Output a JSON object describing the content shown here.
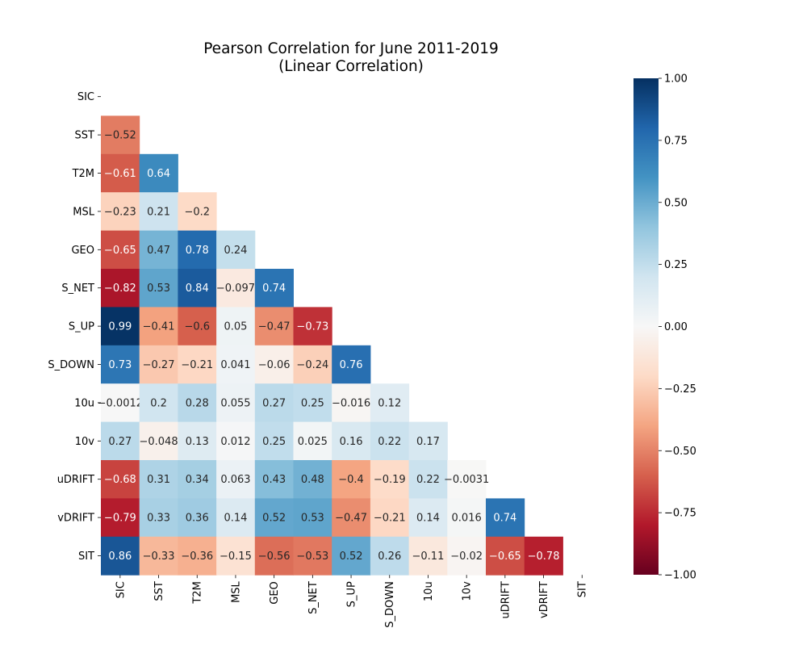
{
  "chart_data": {
    "type": "heatmap",
    "title": "Pearson Correlation for June 2011-2019",
    "subtitle": "(Linear Correlation)",
    "variables": [
      "SIC",
      "SST",
      "T2M",
      "MSL",
      "GEO",
      "S_NET",
      "S_UP",
      "S_DOWN",
      "10u",
      "10v",
      "uDRIFT",
      "vDRIFT",
      "SIT"
    ],
    "mask": "upper-triangle-and-diagonal",
    "matrix": [
      [
        null,
        null,
        null,
        null,
        null,
        null,
        null,
        null,
        null,
        null,
        null,
        null,
        null
      ],
      [
        -0.52,
        null,
        null,
        null,
        null,
        null,
        null,
        null,
        null,
        null,
        null,
        null,
        null
      ],
      [
        -0.61,
        0.64,
        null,
        null,
        null,
        null,
        null,
        null,
        null,
        null,
        null,
        null,
        null
      ],
      [
        -0.23,
        0.21,
        -0.2,
        null,
        null,
        null,
        null,
        null,
        null,
        null,
        null,
        null,
        null
      ],
      [
        -0.65,
        0.47,
        0.78,
        0.24,
        null,
        null,
        null,
        null,
        null,
        null,
        null,
        null,
        null
      ],
      [
        -0.82,
        0.53,
        0.84,
        -0.097,
        0.74,
        null,
        null,
        null,
        null,
        null,
        null,
        null,
        null
      ],
      [
        0.99,
        -0.41,
        -0.6,
        0.05,
        -0.47,
        -0.73,
        null,
        null,
        null,
        null,
        null,
        null,
        null
      ],
      [
        0.73,
        -0.27,
        -0.21,
        0.041,
        -0.06,
        -0.24,
        0.76,
        null,
        null,
        null,
        null,
        null,
        null
      ],
      [
        -0.0012,
        0.2,
        0.28,
        0.055,
        0.27,
        0.25,
        -0.016,
        0.12,
        null,
        null,
        null,
        null,
        null
      ],
      [
        0.27,
        -0.048,
        0.13,
        0.012,
        0.25,
        0.025,
        0.16,
        0.22,
        0.17,
        null,
        null,
        null,
        null
      ],
      [
        -0.68,
        0.31,
        0.34,
        0.063,
        0.43,
        0.48,
        -0.4,
        -0.19,
        0.22,
        -0.0031,
        null,
        null,
        null
      ],
      [
        -0.79,
        0.33,
        0.36,
        0.14,
        0.52,
        0.53,
        -0.47,
        -0.21,
        0.14,
        0.016,
        0.74,
        null,
        null
      ],
      [
        0.86,
        -0.33,
        -0.36,
        -0.15,
        -0.56,
        -0.53,
        0.52,
        0.26,
        -0.11,
        -0.02,
        -0.65,
        -0.78,
        null
      ]
    ],
    "colormap": "RdBu",
    "vmin": -1.0,
    "vmax": 1.0,
    "colorbar_ticks": [
      "1.00",
      "0.75",
      "0.50",
      "0.25",
      "0.00",
      "−0.25",
      "−0.50",
      "−0.75",
      "−1.00"
    ],
    "colorbar_tick_values": [
      1.0,
      0.75,
      0.5,
      0.25,
      0.0,
      -0.25,
      -0.5,
      -0.75,
      -1.0
    ],
    "grid": false,
    "legend": "colorbar-right"
  }
}
